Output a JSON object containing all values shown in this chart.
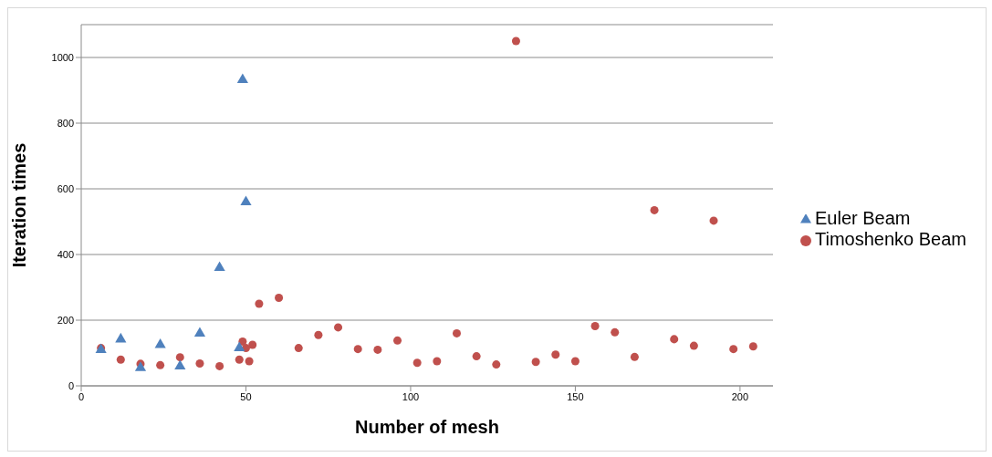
{
  "chart_data": {
    "type": "scatter",
    "xlabel": "Number of mesh",
    "ylabel": "Iteration times",
    "xlim": [
      0,
      210
    ],
    "xticks": [
      0,
      50,
      100,
      150,
      200
    ],
    "ylim": [
      0,
      1100
    ],
    "yticks": [
      0,
      200,
      400,
      600,
      800,
      1000
    ],
    "grid": "y",
    "legend": "right",
    "series": [
      {
        "name": "Euler Beam",
        "color": "#4f81bd",
        "marker": "triangle",
        "x": [
          6,
          12,
          18,
          24,
          30,
          36,
          42,
          48,
          49,
          50
        ],
        "values": [
          110,
          142,
          55,
          125,
          60,
          160,
          360,
          115,
          932,
          560
        ]
      },
      {
        "name": "Timoshenko Beam",
        "color": "#c0504d",
        "marker": "circle",
        "x": [
          6,
          12,
          18,
          24,
          30,
          36,
          42,
          48,
          49,
          50,
          51,
          52,
          54,
          60,
          66,
          72,
          78,
          84,
          90,
          96,
          102,
          108,
          114,
          120,
          126,
          132,
          138,
          144,
          150,
          156,
          162,
          168,
          174,
          180,
          186,
          192,
          198,
          204
        ],
        "values": [
          115,
          80,
          67,
          63,
          87,
          68,
          60,
          80,
          135,
          115,
          75,
          125,
          250,
          268,
          115,
          155,
          178,
          112,
          110,
          138,
          70,
          75,
          160,
          90,
          65,
          1050,
          73,
          95,
          75,
          182,
          163,
          88,
          535,
          142,
          122,
          503,
          112,
          120
        ]
      }
    ]
  }
}
